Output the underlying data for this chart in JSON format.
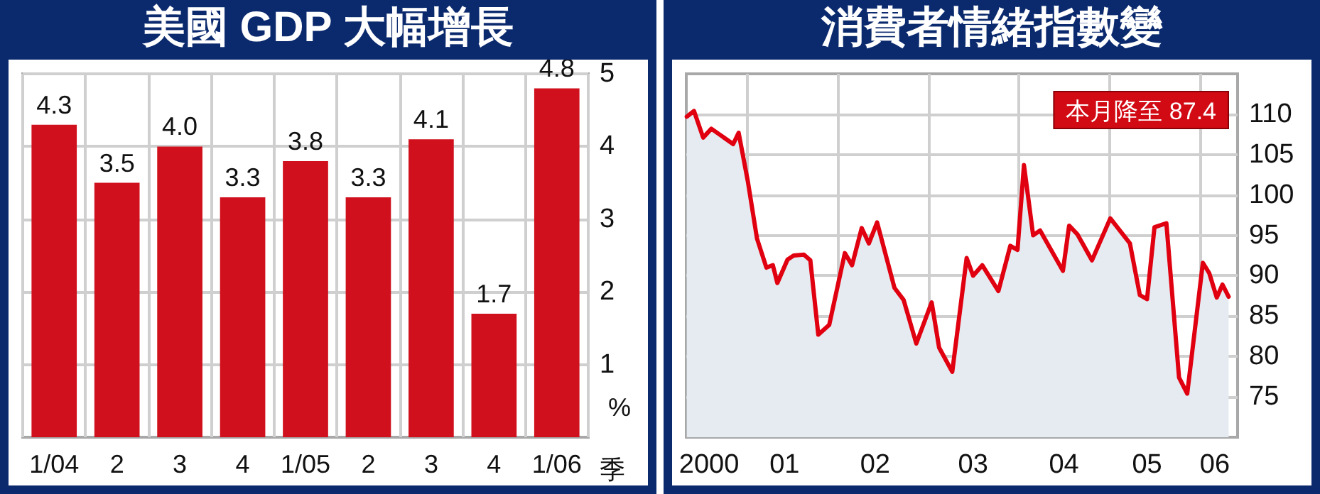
{
  "chart_data": [
    {
      "type": "bar",
      "title": "美國 GDP 大幅增長",
      "categories": [
        "1/04",
        "2",
        "3",
        "4",
        "1/05",
        "2",
        "3",
        "4",
        "1/06"
      ],
      "values": [
        4.3,
        3.5,
        4.0,
        3.3,
        3.8,
        3.3,
        4.1,
        1.7,
        4.8
      ],
      "value_labels": [
        "4.3",
        "3.5",
        "4.0",
        "3.3",
        "3.8",
        "3.3",
        "4.1",
        "1.7",
        "4.8"
      ],
      "color": "#d0101c",
      "ylim": [
        0,
        5
      ],
      "yticks": [
        1,
        2,
        3,
        4,
        5
      ],
      "ylabel": "%",
      "xlabel": "季",
      "grid": true
    },
    {
      "type": "area",
      "title": "消費者情緒指數變",
      "color": "#e00010",
      "x": [
        "2000-05-03",
        "2000-06-01",
        "2000-07-08",
        "2000-08-10",
        "2000-11-06",
        "2000-11-28",
        "2001-01-04",
        "2001-02-10",
        "2001-03-20",
        "2001-04-15",
        "2001-05-03",
        "2001-06-13",
        "2001-07-08",
        "2001-08-18",
        "2001-09-13",
        "2001-10-15",
        "2001-11-28",
        "2002-01-30",
        "2002-02-28",
        "2002-04-08",
        "2002-05-07",
        "2002-06-09",
        "2002-08-18",
        "2002-09-24",
        "2002-11-14",
        "2003-01-15",
        "2003-02-14",
        "2003-04-08",
        "2003-06-05",
        "2003-07-01",
        "2003-08-07",
        "2003-10-11",
        "2003-11-28",
        "2003-12-27",
        "2004-01-22",
        "2004-02-28",
        "2004-03-27",
        "2004-06-27",
        "2004-07-22",
        "2004-08-25",
        "2004-10-22",
        "2005-01-04",
        "2005-03-24",
        "2005-05-03",
        "2005-06-01",
        "2005-07-01",
        "2005-08-18",
        "2005-10-08",
        "2005-11-10",
        "2006-01-12",
        "2006-02-07",
        "2006-03-09",
        "2006-04-01",
        "2006-04-26"
      ],
      "values": [
        109.7,
        110.4,
        107.1,
        108.2,
        106.3,
        107.7,
        101.7,
        94.6,
        91.0,
        91.3,
        89.1,
        92.0,
        92.5,
        92.6,
        91.9,
        82.7,
        83.9,
        92.8,
        91.3,
        95.9,
        94.0,
        96.6,
        88.5,
        87.0,
        81.6,
        86.7,
        81.1,
        78.1,
        92.2,
        90.0,
        91.3,
        88.1,
        93.7,
        93.2,
        103.7,
        95.0,
        95.6,
        90.6,
        96.2,
        95.1,
        91.9,
        97.1,
        94.0,
        87.6,
        87.1,
        96.0,
        96.5,
        77.4,
        75.4,
        91.6,
        90.3,
        87.3,
        88.9,
        87.4
      ],
      "ylim": [
        70,
        115
      ],
      "yticks": [
        75,
        80,
        85,
        90,
        95,
        100,
        105,
        110
      ],
      "xlim": [
        "2000-05",
        "2006-06"
      ],
      "xticks": [
        {
          "value": "2000-08",
          "label": "2000"
        },
        {
          "value": "2001",
          "label": null
        },
        {
          "value": "2001-06",
          "label": "01"
        },
        {
          "value": "2002",
          "label": null
        },
        {
          "value": "2002-06",
          "label": "02"
        },
        {
          "value": "2003",
          "label": null
        },
        {
          "value": "2003-07",
          "label": "03"
        },
        {
          "value": "2004",
          "label": null
        },
        {
          "value": "2004-07",
          "label": "04"
        },
        {
          "value": "2005",
          "label": null
        },
        {
          "value": "2005-06",
          "label": "05"
        },
        {
          "value": "2006",
          "label": null
        },
        {
          "value": "2006-03",
          "label": "06"
        }
      ],
      "grid": true,
      "annotations": [
        "本月降至 87.4"
      ]
    }
  ]
}
